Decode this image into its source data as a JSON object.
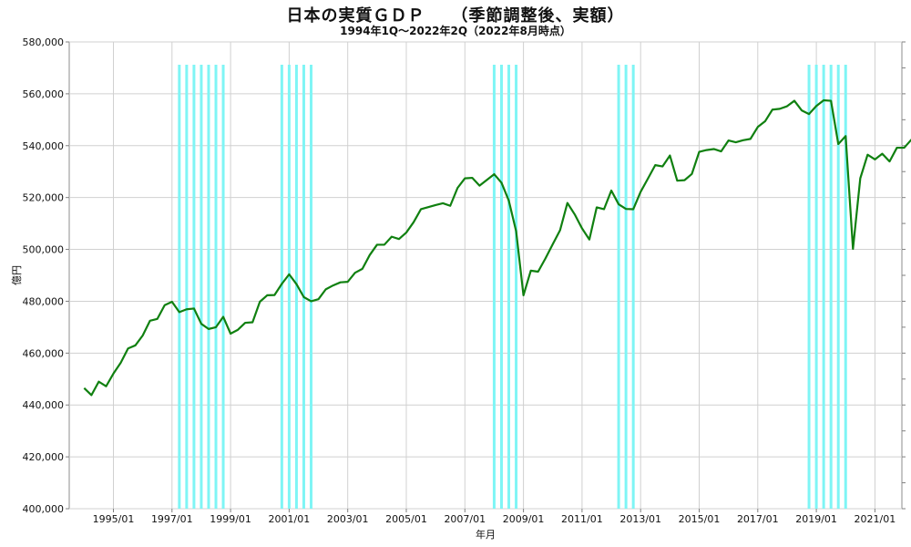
{
  "chart_data": {
    "type": "line",
    "title": "日本の実質ＧＤＰ　　（季節調整後、実額）",
    "subtitle": "1994年1Q～2022年2Q（2022年8月時点）",
    "xlabel": "年月",
    "ylabel": "億円",
    "ylim": [
      400000,
      580000
    ],
    "y_ticks": [
      400000,
      420000,
      440000,
      460000,
      480000,
      500000,
      520000,
      540000,
      560000,
      580000
    ],
    "y_tick_labels": [
      "400,000",
      "420,000",
      "440,000",
      "460,000",
      "480,000",
      "500,000",
      "520,000",
      "540,000",
      "560,000",
      "580,000"
    ],
    "x_tick_labels": [
      "1995/01",
      "1997/01",
      "1999/01",
      "2001/01",
      "2003/01",
      "2005/01",
      "2007/01",
      "2009/01",
      "2011/01",
      "2013/01",
      "2015/01",
      "2017/01",
      "2019/01",
      "2021/01"
    ],
    "grid": true,
    "colors": {
      "line": "#108010",
      "recession": "#7ff5f5",
      "grid": "#d0d0d0",
      "axis": "#808080"
    },
    "start": "1994Q1",
    "recession_quarters": [
      "1997Q2",
      "1997Q3",
      "1997Q4",
      "1998Q1",
      "1998Q2",
      "1998Q3",
      "1998Q4",
      "2000Q4",
      "2001Q1",
      "2001Q2",
      "2001Q3",
      "2001Q4",
      "2008Q1",
      "2008Q2",
      "2008Q3",
      "2008Q4",
      "2012Q2",
      "2012Q3",
      "2012Q4",
      "2018Q4",
      "2019Q1",
      "2019Q2",
      "2019Q3",
      "2019Q4",
      "2020Q1"
    ],
    "series": [
      {
        "values": [
          446500,
          443800,
          449000,
          447200,
          452100,
          456300,
          461800,
          463000,
          466800,
          472500,
          473200,
          478500,
          479800,
          475800,
          476900,
          477200,
          471300,
          469300,
          470000,
          474000,
          467500,
          469000,
          471700,
          471900,
          479800,
          482300,
          482400,
          486700,
          490400,
          486600,
          481600,
          480000,
          480800,
          484600,
          486100,
          487300,
          487500,
          491000,
          492500,
          497800,
          501800,
          501800,
          504900,
          504000,
          506500,
          510500,
          515500,
          516300,
          517100,
          517800,
          516800,
          523700,
          527400,
          527600,
          524600,
          526800,
          529000,
          525700,
          518800,
          507000,
          482300,
          491800,
          491400,
          496500,
          502000,
          507400,
          517900,
          513500,
          508100,
          503800,
          516200,
          515500,
          522700,
          517400,
          515600,
          515500,
          522200,
          527300,
          532500,
          532000,
          536200,
          526500,
          526700,
          529100,
          537600,
          538300,
          538700,
          537800,
          542000,
          541300,
          542100,
          542600,
          547200,
          549400,
          553900,
          554200,
          555200,
          557300,
          553600,
          552200,
          555300,
          557500,
          557300,
          540600,
          543700,
          500200,
          527400,
          536500,
          534700,
          536900,
          533900,
          539200,
          539200,
          542400
        ]
      }
    ]
  }
}
